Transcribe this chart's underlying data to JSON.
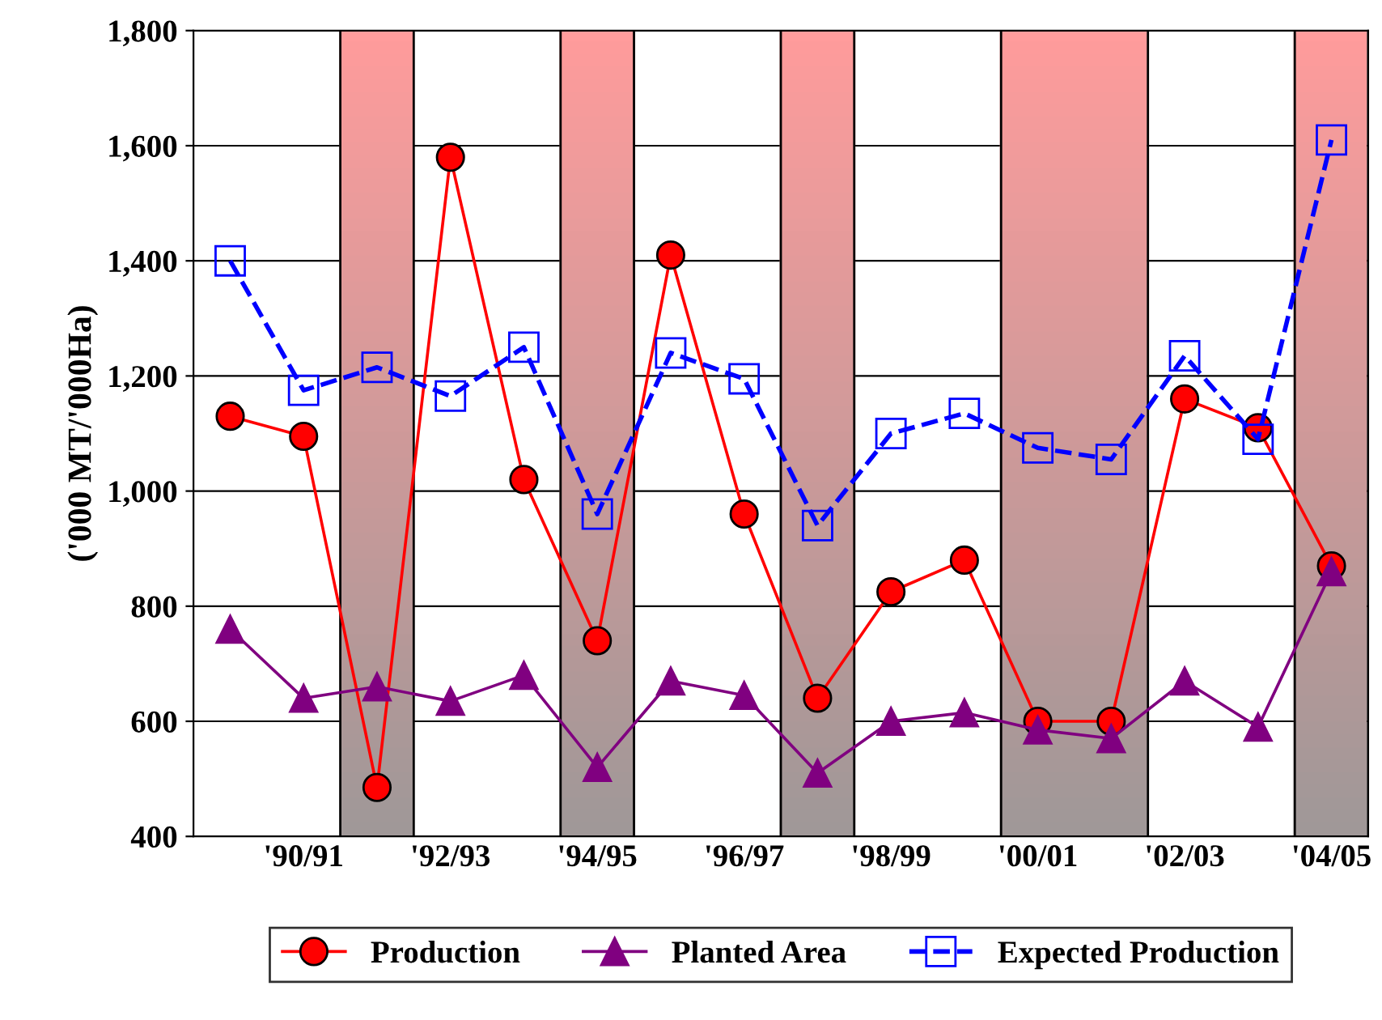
{
  "chart_data": {
    "type": "line",
    "ylabel": "('000 MT/'000Ha)",
    "categories": [
      null,
      "'90/91",
      null,
      "'92/93",
      null,
      "'94/95",
      null,
      "'96/97",
      null,
      "'98/99",
      null,
      "'00/01",
      null,
      "'02/03",
      null,
      "'04/05"
    ],
    "ylim": [
      400,
      1800
    ],
    "yticks": [
      400,
      600,
      800,
      {
        "value": 1000,
        "label": "1,000"
      },
      {
        "value": 1200,
        "label": "1,200"
      },
      {
        "value": 1400,
        "label": "1,400"
      },
      {
        "value": 1600,
        "label": "1,600"
      },
      {
        "value": 1800,
        "label": "1,800"
      }
    ],
    "grid": "y",
    "legend": "bottom",
    "series": [
      {
        "name": "Production",
        "color": "#ff0000",
        "marker": "circle",
        "line_style": "solid",
        "values": [
          1130,
          1095,
          485,
          1580,
          1020,
          740,
          1410,
          960,
          640,
          825,
          880,
          600,
          600,
          1160,
          1110,
          870
        ]
      },
      {
        "name": "Planted Area",
        "color": "#800080",
        "marker": "triangle",
        "line_style": "solid",
        "values": [
          760,
          640,
          660,
          635,
          680,
          520,
          670,
          645,
          510,
          600,
          615,
          585,
          570,
          670,
          590,
          860
        ]
      },
      {
        "name": "Expected Production",
        "color": "#0000ff",
        "marker": "square",
        "line_style": "dashed",
        "values": [
          1400,
          1175,
          1215,
          1165,
          1250,
          960,
          1240,
          1195,
          940,
          1100,
          1135,
          1075,
          1055,
          1235,
          1090,
          1610
        ]
      }
    ]
  }
}
